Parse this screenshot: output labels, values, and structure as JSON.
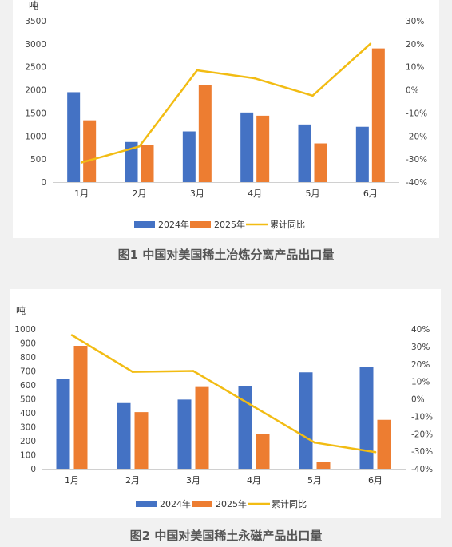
{
  "captions": [
    "图1 中国对美国稀土冶炼分离产品出口量",
    "图2 中国对美国稀土永磁产品出口量"
  ],
  "chart_data": [
    {
      "type": "bar",
      "title": "图1 中国对美国稀土冶炼分离产品出口量",
      "ylabel": "吨",
      "categories": [
        "1月",
        "2月",
        "3月",
        "4月",
        "5月",
        "6月"
      ],
      "ylim": [
        0,
        3500
      ],
      "yticks": [
        0,
        500,
        1000,
        1500,
        2000,
        2500,
        3000,
        3500
      ],
      "y2lim": [
        -40,
        30
      ],
      "y2ticks": [
        -40,
        -30,
        -20,
        -10,
        0,
        10,
        20,
        30
      ],
      "y2tick_suffix": "%",
      "series": [
        {
          "name": "2024年",
          "type": "bar",
          "axis": "left",
          "color": "#4472c4",
          "values": [
            1950,
            870,
            1100,
            1510,
            1250,
            1200
          ]
        },
        {
          "name": "2025年",
          "type": "bar",
          "axis": "left",
          "color": "#ed7d31",
          "values": [
            1340,
            800,
            2100,
            1440,
            840,
            2900
          ]
        },
        {
          "name": "累计同比",
          "type": "line",
          "axis": "right",
          "color": "#f2bc13",
          "values": [
            -31.5,
            -24.5,
            8.5,
            5,
            -2.5,
            20
          ]
        }
      ],
      "legend_position": "bottom",
      "grid": false
    },
    {
      "type": "bar",
      "title": "图2 中国对美国稀土永磁产品出口量",
      "ylabel": "吨",
      "categories": [
        "1月",
        "2月",
        "3月",
        "4月",
        "5月",
        "6月"
      ],
      "ylim": [
        0,
        1000
      ],
      "yticks": [
        0,
        100,
        200,
        300,
        400,
        500,
        600,
        700,
        800,
        900,
        1000
      ],
      "y2lim": [
        -40,
        40
      ],
      "y2ticks": [
        -40,
        -30,
        -20,
        -10,
        0,
        10,
        20,
        30,
        40
      ],
      "y2tick_suffix": "%",
      "series": [
        {
          "name": "2024年",
          "type": "bar",
          "axis": "left",
          "color": "#4472c4",
          "values": [
            645,
            470,
            495,
            590,
            690,
            730
          ]
        },
        {
          "name": "2025年",
          "type": "bar",
          "axis": "left",
          "color": "#ed7d31",
          "values": [
            880,
            405,
            585,
            250,
            50,
            350
          ]
        },
        {
          "name": "累计同比",
          "type": "line",
          "axis": "right",
          "color": "#f2bc13",
          "values": [
            36.5,
            15.5,
            16,
            -4.5,
            -25,
            -30.5
          ]
        }
      ],
      "legend_position": "bottom",
      "grid": false
    }
  ]
}
